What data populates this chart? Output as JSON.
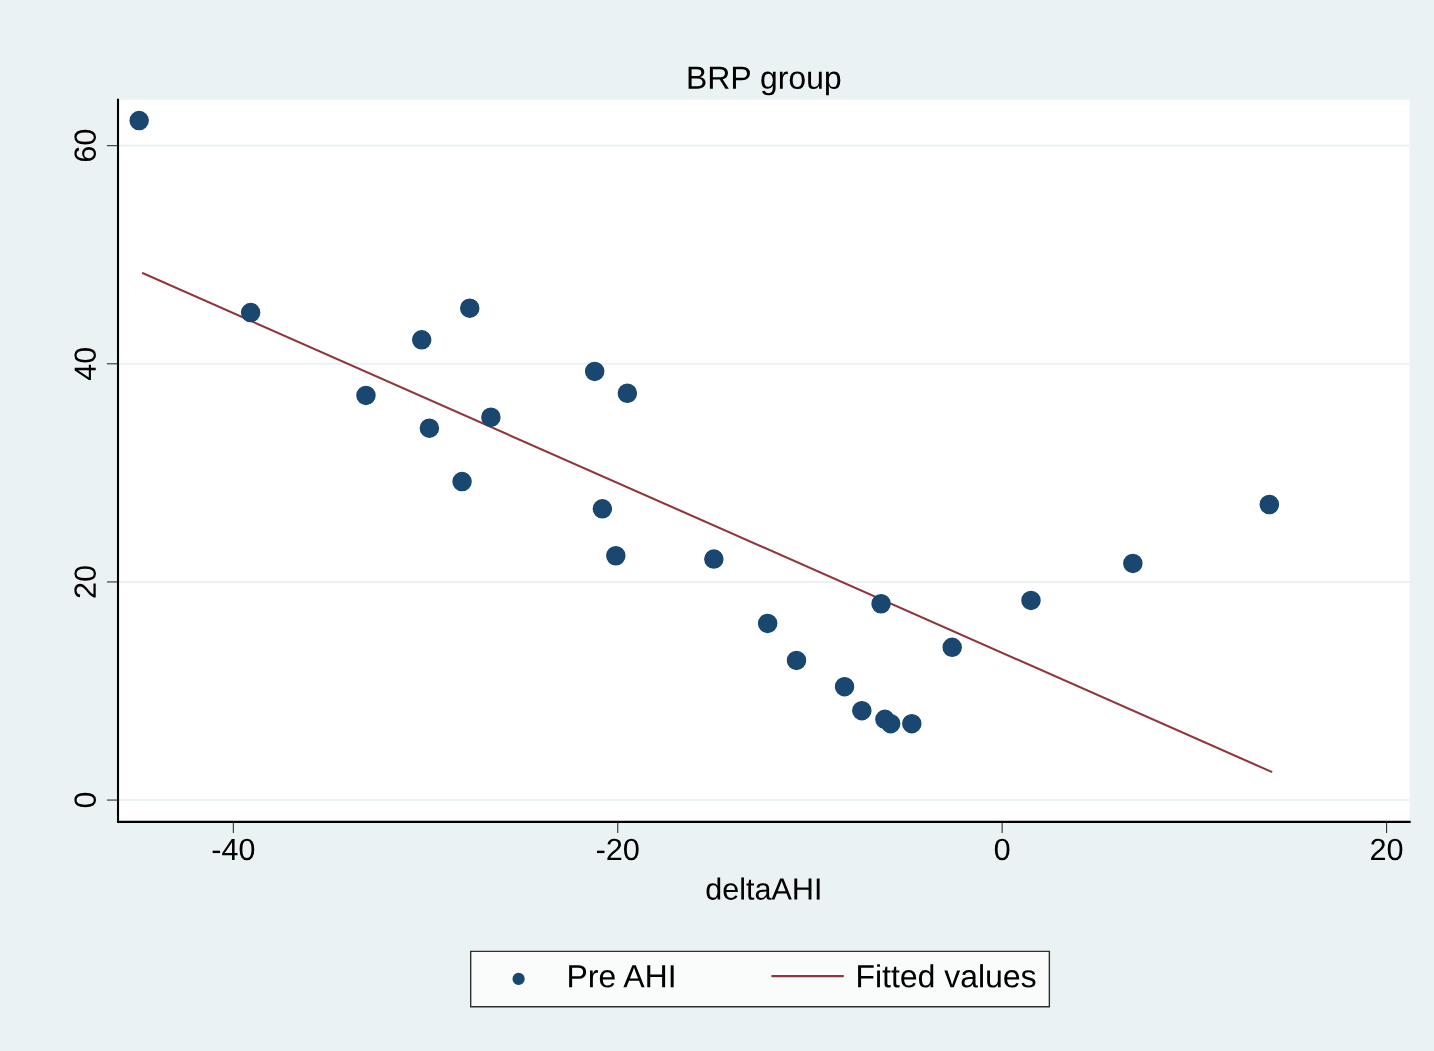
{
  "chart_data": {
    "type": "scatter",
    "title": "BRP group",
    "xlabel": "deltaAHI",
    "xlim": [
      -46.0,
      21.2
    ],
    "xticks": [
      -40,
      -20,
      0,
      20
    ],
    "ylim": [
      -2.0,
      64.2
    ],
    "yticks": [
      0,
      20,
      40,
      60
    ],
    "grid": "y",
    "legend": "bottom",
    "series": [
      {
        "name": "Pre AHI",
        "marker": "circle",
        "color": "#1a476f",
        "x": [
          -44.9,
          -39.1,
          -33.1,
          -30.2,
          -29.8,
          -28.1,
          -27.7,
          -26.6,
          -21.2,
          -20.8,
          -20.1,
          -19.5,
          -15.0,
          -12.2,
          -10.7,
          -8.2,
          -7.3,
          -6.3,
          -6.1,
          -5.8,
          -4.7,
          -2.6,
          1.5,
          6.8,
          13.9
        ],
        "values": [
          62.3,
          44.7,
          37.1,
          42.2,
          34.1,
          29.2,
          45.1,
          35.1,
          39.3,
          26.7,
          22.4,
          37.3,
          22.1,
          16.2,
          12.8,
          10.4,
          8.2,
          18.0,
          7.4,
          7.0,
          7.0,
          14.0,
          18.3,
          21.7,
          27.1
        ]
      },
      {
        "name": "Fitted values",
        "type": "line",
        "color": "#90353b",
        "x": [
          -44.7,
          14.0
        ],
        "values": [
          48.3,
          2.6
        ]
      }
    ]
  }
}
